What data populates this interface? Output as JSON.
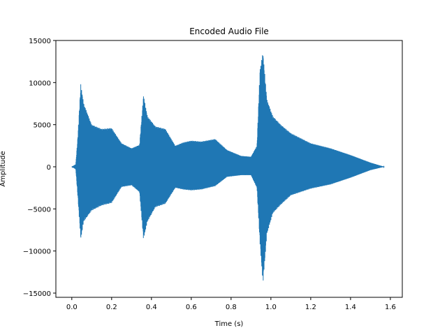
{
  "chart_data": {
    "type": "line",
    "title": "Encoded Audio File",
    "xlabel": "Time (s)",
    "ylabel": "Amplitude",
    "xlim": [
      -0.08,
      1.66
    ],
    "ylim": [
      -15500,
      15000
    ],
    "xticks": [
      0.0,
      0.2,
      0.4,
      0.6,
      0.8,
      1.0,
      1.2,
      1.4,
      1.6
    ],
    "xtick_labels": [
      "0.0",
      "0.2",
      "0.4",
      "0.6",
      "0.8",
      "1.0",
      "1.2",
      "1.4",
      "1.6"
    ],
    "yticks": [
      -15000,
      -10000,
      -5000,
      0,
      5000,
      10000,
      15000
    ],
    "ytick_labels": [
      "−15000",
      "−10000",
      "−5000",
      "0",
      "5000",
      "10000",
      "15000"
    ],
    "grid": false,
    "color": "#1f77b4",
    "series": [
      {
        "envelope": {
          "x": [
            0.0,
            0.02,
            0.03,
            0.045,
            0.06,
            0.1,
            0.15,
            0.2,
            0.25,
            0.3,
            0.34,
            0.36,
            0.38,
            0.42,
            0.47,
            0.52,
            0.56,
            0.6,
            0.65,
            0.72,
            0.78,
            0.85,
            0.9,
            0.93,
            0.945,
            0.96,
            0.98,
            1.01,
            1.05,
            1.1,
            1.2,
            1.3,
            1.4,
            1.5,
            1.57
          ],
          "upper": [
            0,
            300,
            3500,
            9800,
            7500,
            5000,
            4500,
            4600,
            2800,
            2200,
            2600,
            8500,
            6000,
            4800,
            4500,
            2500,
            2900,
            3100,
            3000,
            3300,
            2000,
            1300,
            1200,
            2500,
            11500,
            13600,
            8000,
            6000,
            5000,
            4000,
            2800,
            2200,
            1400,
            500,
            0
          ],
          "lower": [
            0,
            -300,
            -3500,
            -8600,
            -6500,
            -5200,
            -4600,
            -4300,
            -2400,
            -2200,
            -3000,
            -8600,
            -6500,
            -4800,
            -4400,
            -2500,
            -2700,
            -2800,
            -2700,
            -2300,
            -1200,
            -1000,
            -1000,
            -2500,
            -9000,
            -13900,
            -8000,
            -5500,
            -4500,
            -3400,
            -2600,
            -2100,
            -1300,
            -400,
            0
          ]
        }
      }
    ]
  }
}
